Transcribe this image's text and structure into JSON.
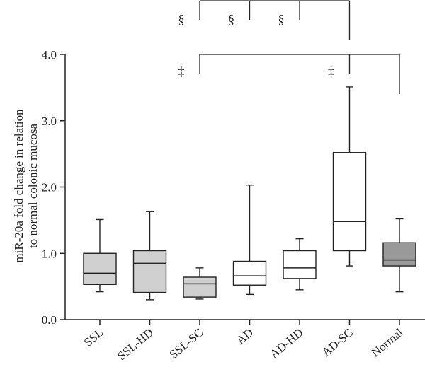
{
  "chart_data": {
    "type": "box",
    "ylabel_lines": [
      "miR-20a fold change in relation",
      "to normal colonic mucosa"
    ],
    "ylim": [
      0.0,
      4.0
    ],
    "yticks": [
      "0.0",
      "1.0",
      "2.0",
      "3.0",
      "4.0"
    ],
    "categories": [
      "SSL",
      "SSL-HD",
      "SSL-SC",
      "AD",
      "AD-HD",
      "AD-SC",
      "Normal"
    ],
    "boxes": [
      {
        "min": 0.42,
        "q1": 0.53,
        "median": 0.7,
        "q3": 1.0,
        "max": 1.51
      },
      {
        "min": 0.3,
        "q1": 0.41,
        "median": 0.85,
        "q3": 1.04,
        "max": 1.63
      },
      {
        "min": 0.31,
        "q1": 0.34,
        "median": 0.54,
        "q3": 0.64,
        "max": 0.78
      },
      {
        "min": 0.38,
        "q1": 0.52,
        "median": 0.66,
        "q3": 0.88,
        "max": 2.03
      },
      {
        "min": 0.45,
        "q1": 0.62,
        "median": 0.78,
        "q3": 1.04,
        "max": 1.22
      },
      {
        "min": 0.81,
        "q1": 1.04,
        "median": 1.48,
        "q3": 2.52,
        "max": 3.51
      },
      {
        "min": 0.42,
        "q1": 0.81,
        "median": 0.9,
        "q3": 1.16,
        "max": 1.52
      }
    ],
    "colors": {
      "SSL": "#d0d0d0",
      "SSL-HD": "#d0d0d0",
      "SSL-SC": "#d0d0d0",
      "AD": "#ffffff",
      "AD-HD": "#ffffff",
      "AD-SC": "#ffffff",
      "Normal": "#999999",
      "stroke": "#222222"
    },
    "significance": [
      {
        "symbol": "§",
        "from": "SSL-SC",
        "to": "AD-SC",
        "inner": [
          "AD",
          "AD-HD"
        ],
        "level": "upper"
      },
      {
        "symbol": "‡",
        "from": "SSL-SC",
        "to": "Normal",
        "inner": [
          "AD-SC"
        ],
        "level": "lower"
      }
    ]
  }
}
